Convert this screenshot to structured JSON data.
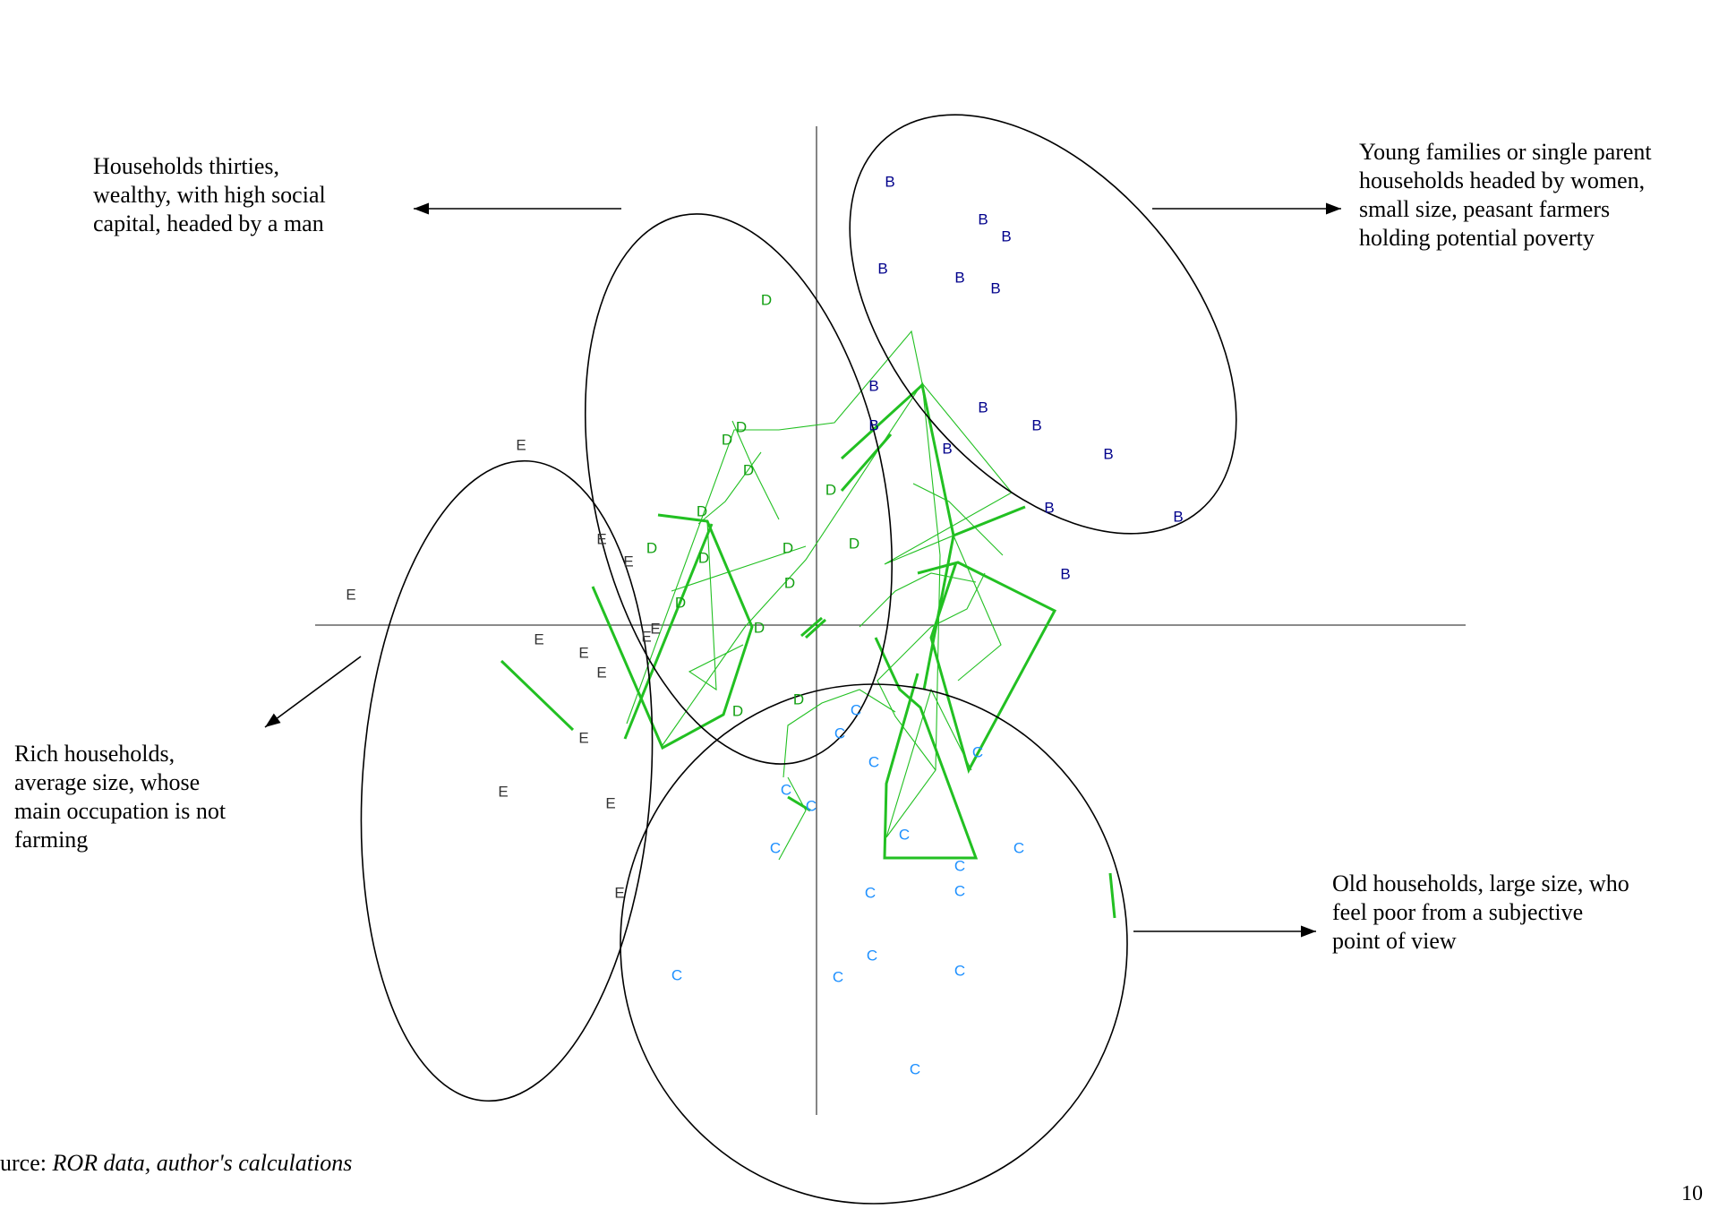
{
  "chart_data": {
    "type": "scatter",
    "title": "",
    "xlabel": "",
    "ylabel": "",
    "grid": false,
    "axes": "cross at origin",
    "xlim": [
      -6.6,
      7.3
    ],
    "ylim": [
      -5.5,
      5.6
    ],
    "colors": {
      "B": "#00008b",
      "C": "#1e90ff",
      "D": "#12a012",
      "E": "#333333",
      "network": "#22c022",
      "ellipse": "#000000"
    },
    "series": [
      {
        "name": "B",
        "points": [
          {
            "x": 0.82,
            "y": 4.94
          },
          {
            "x": 1.86,
            "y": 4.52
          },
          {
            "x": 2.12,
            "y": 4.33
          },
          {
            "x": 0.74,
            "y": 3.97
          },
          {
            "x": 1.6,
            "y": 3.87
          },
          {
            "x": 2.0,
            "y": 3.75
          },
          {
            "x": 0.64,
            "y": 2.66
          },
          {
            "x": 1.86,
            "y": 2.42
          },
          {
            "x": 2.46,
            "y": 2.22
          },
          {
            "x": 0.64,
            "y": 2.22
          },
          {
            "x": 1.46,
            "y": 1.96
          },
          {
            "x": 3.26,
            "y": 1.9
          },
          {
            "x": 2.6,
            "y": 1.3
          },
          {
            "x": 4.04,
            "y": 1.2
          },
          {
            "x": 2.78,
            "y": 0.56
          }
        ]
      },
      {
        "name": "C",
        "points": [
          {
            "x": 0.44,
            "y": -0.96
          },
          {
            "x": 0.26,
            "y": -1.22
          },
          {
            "x": 1.8,
            "y": -1.43
          },
          {
            "x": 0.64,
            "y": -1.54
          },
          {
            "x": -0.34,
            "y": -1.85
          },
          {
            "x": -0.06,
            "y": -2.03
          },
          {
            "x": 0.98,
            "y": -2.35
          },
          {
            "x": 2.26,
            "y": -2.5
          },
          {
            "x": 1.6,
            "y": -2.7
          },
          {
            "x": -0.46,
            "y": -2.5
          },
          {
            "x": 1.6,
            "y": -2.98
          },
          {
            "x": 0.6,
            "y": -3.0
          },
          {
            "x": 0.62,
            "y": -3.7
          },
          {
            "x": 1.6,
            "y": -3.87
          },
          {
            "x": 0.24,
            "y": -3.94
          },
          {
            "x": -1.56,
            "y": -3.92
          },
          {
            "x": 1.1,
            "y": -4.97
          }
        ]
      },
      {
        "name": "D",
        "points": [
          {
            "x": -0.56,
            "y": 3.62
          },
          {
            "x": -0.84,
            "y": 2.2
          },
          {
            "x": -1.0,
            "y": 2.06
          },
          {
            "x": -0.76,
            "y": 1.72
          },
          {
            "x": 0.16,
            "y": 1.5
          },
          {
            "x": -1.28,
            "y": 1.26
          },
          {
            "x": -1.84,
            "y": 0.85
          },
          {
            "x": -0.32,
            "y": 0.85
          },
          {
            "x": 0.42,
            "y": 0.9
          },
          {
            "x": -1.26,
            "y": 0.74
          },
          {
            "x": -0.3,
            "y": 0.46
          },
          {
            "x": -1.52,
            "y": 0.24
          },
          {
            "x": -0.64,
            "y": -0.04
          },
          {
            "x": -0.2,
            "y": -0.84
          },
          {
            "x": -0.88,
            "y": -0.97
          }
        ]
      },
      {
        "name": "E",
        "points": [
          {
            "x": -3.3,
            "y": 2.0
          },
          {
            "x": -2.4,
            "y": 0.95
          },
          {
            "x": -2.1,
            "y": 0.7
          },
          {
            "x": -5.2,
            "y": 0.33
          },
          {
            "x": -1.8,
            "y": -0.05
          },
          {
            "x": -1.9,
            "y": -0.14
          },
          {
            "x": -3.1,
            "y": -0.17
          },
          {
            "x": -2.6,
            "y": -0.32
          },
          {
            "x": -2.4,
            "y": -0.54
          },
          {
            "x": -2.6,
            "y": -1.27
          },
          {
            "x": -3.5,
            "y": -1.87
          },
          {
            "x": -2.3,
            "y": -2.0
          },
          {
            "x": -2.2,
            "y": -3.0
          }
        ]
      }
    ],
    "clusters": [
      {
        "label": "Young families or single parent households headed by women, small size, peasant farmers holding potential poverty",
        "center": [
          2.1,
          3.0
        ]
      },
      {
        "label": "Households thirties, wealthy, with high social capital, headed by a man",
        "center": [
          -0.7,
          1.35
        ]
      },
      {
        "label": "Rich households, average size, whose main occupation is not farming",
        "center": [
          -2.8,
          -0.3
        ]
      },
      {
        "label": "Old households, large size, who feel poor from a subjective point of view",
        "center": [
          0.6,
          -2.65
        ]
      }
    ]
  },
  "annotations": {
    "cluster_b": [
      "Young families or single parent",
      "households headed by women,",
      "small size, peasant farmers",
      "holding potential poverty"
    ],
    "cluster_d": [
      "Households thirties,",
      "wealthy, with high social",
      "capital, headed by a man"
    ],
    "cluster_e": [
      "Rich households,",
      "average size, whose",
      "main occupation is not",
      "farming"
    ],
    "cluster_c": [
      "Old households, large size, who",
      "feel poor from a subjective",
      "point of view"
    ]
  },
  "source": {
    "prefix": "urce: ",
    "text": "ROR data, author's calculations"
  },
  "page_number": "10"
}
